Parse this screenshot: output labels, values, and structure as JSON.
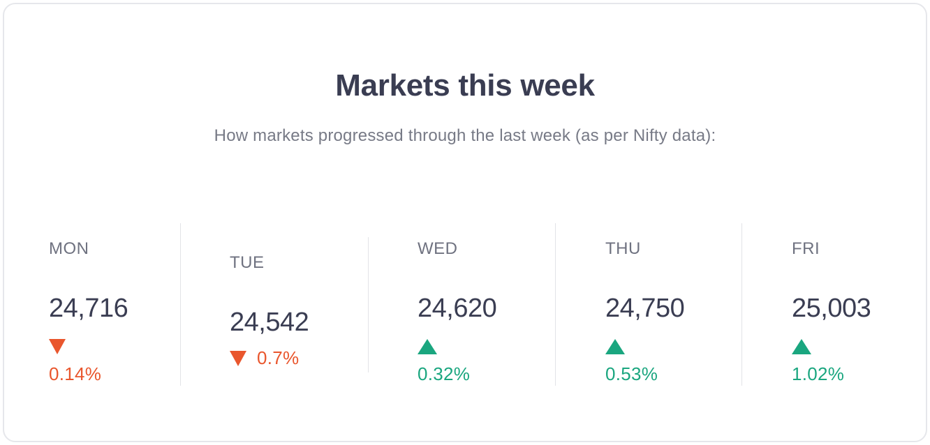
{
  "card": {
    "title": "Markets this week",
    "subtitle": "How markets progressed through the last week (as per Nifty data):"
  },
  "days": [
    {
      "label": "MON",
      "value": "24,716",
      "change": "0.14%",
      "direction": "down"
    },
    {
      "label": "TUE",
      "value": "24,542",
      "change": "0.7%",
      "direction": "down"
    },
    {
      "label": "WED",
      "value": "24,620",
      "change": "0.32%",
      "direction": "up"
    },
    {
      "label": "THU",
      "value": "24,750",
      "change": "0.53%",
      "direction": "up"
    },
    {
      "label": "FRI",
      "value": "25,003",
      "change": "1.02%",
      "direction": "up"
    }
  ],
  "colors": {
    "up": "#1aa67f",
    "down": "#e9562d",
    "text": "#3a3d52",
    "muted": "#777a86"
  },
  "icons": {
    "up": "triangle-up-icon",
    "down": "triangle-down-icon"
  }
}
